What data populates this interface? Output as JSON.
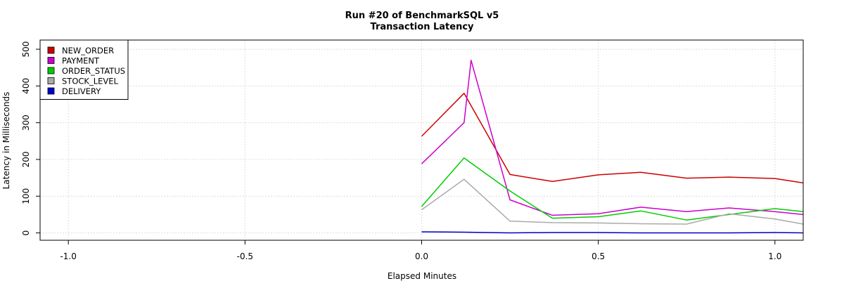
{
  "chart_data": {
    "type": "line",
    "title": "Run #20 of BenchmarkSQL v5",
    "subtitle": "Transaction Latency",
    "xlabel": "Elapsed Minutes",
    "ylabel": "Latency in Milliseconds",
    "xlim": [
      -1.08,
      1.08
    ],
    "ylim": [
      -20,
      525
    ],
    "x_ticks": [
      "-1.0",
      "-0.5",
      "0.0",
      "0.5",
      "1.0"
    ],
    "y_ticks": [
      "0",
      "100",
      "200",
      "300",
      "400",
      "500"
    ],
    "grid": true,
    "legend_position": "top-left",
    "series": [
      {
        "name": "NEW_ORDER",
        "color": "#cc0000",
        "points": [
          [
            0.0,
            263
          ],
          [
            0.12,
            380
          ],
          [
            0.25,
            159
          ],
          [
            0.37,
            140
          ],
          [
            0.5,
            158
          ],
          [
            0.62,
            165
          ],
          [
            0.75,
            149
          ],
          [
            0.87,
            152
          ],
          [
            1.0,
            148
          ],
          [
            1.08,
            136
          ]
        ]
      },
      {
        "name": "PAYMENT",
        "color": "#cc00cc",
        "points": [
          [
            0.0,
            188
          ],
          [
            0.12,
            300
          ],
          [
            0.14,
            470
          ],
          [
            0.25,
            90
          ],
          [
            0.37,
            48
          ],
          [
            0.5,
            52
          ],
          [
            0.62,
            70
          ],
          [
            0.75,
            58
          ],
          [
            0.87,
            68
          ],
          [
            1.0,
            58
          ],
          [
            1.08,
            50
          ]
        ]
      },
      {
        "name": "ORDER_STATUS",
        "color": "#00cc00",
        "points": [
          [
            0.0,
            72
          ],
          [
            0.12,
            204
          ],
          [
            0.25,
            114
          ],
          [
            0.37,
            40
          ],
          [
            0.5,
            44
          ],
          [
            0.62,
            60
          ],
          [
            0.75,
            35
          ],
          [
            0.87,
            50
          ],
          [
            1.0,
            66
          ],
          [
            1.08,
            58
          ]
        ]
      },
      {
        "name": "STOCK_LEVEL",
        "color": "#aaaaaa",
        "points": [
          [
            0.0,
            63
          ],
          [
            0.12,
            146
          ],
          [
            0.25,
            32
          ],
          [
            0.37,
            28
          ],
          [
            0.5,
            27
          ],
          [
            0.62,
            25
          ],
          [
            0.75,
            24
          ],
          [
            0.87,
            52
          ],
          [
            1.0,
            38
          ],
          [
            1.08,
            24
          ]
        ]
      },
      {
        "name": "DELIVERY",
        "color": "#0000cc",
        "points": [
          [
            0.0,
            3
          ],
          [
            0.12,
            2
          ],
          [
            0.25,
            0
          ],
          [
            0.37,
            1
          ],
          [
            0.5,
            1
          ],
          [
            0.62,
            0
          ],
          [
            0.75,
            0
          ],
          [
            0.87,
            0
          ],
          [
            1.0,
            1
          ],
          [
            1.08,
            0
          ]
        ]
      }
    ]
  }
}
